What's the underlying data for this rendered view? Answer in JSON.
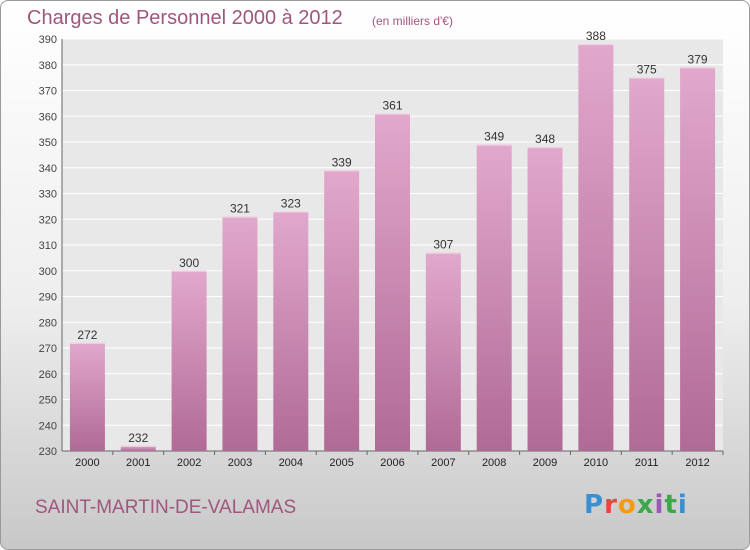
{
  "header": {
    "title": "Charges de Personnel 2000 à 2012",
    "subtitle": "(en milliers d'€)"
  },
  "footer": {
    "location": "SAINT-MARTIN-DE-VALAMAS",
    "brand_letters": [
      "P",
      "r",
      "o",
      "x",
      "i",
      "t",
      "i"
    ],
    "brand_colors": [
      "#3b8fd1",
      "#e8463c",
      "#f39c12",
      "#3aa84a",
      "#9b59b6",
      "#3aa84a",
      "#3b8fd1"
    ]
  },
  "colors": {
    "bar_top": "#e2a8cc",
    "bar_bottom": "#b06a96",
    "accent": "#a0567f",
    "plot_bg": "#e8e8e8"
  },
  "chart_data": {
    "type": "bar",
    "title": "Charges de Personnel 2000 à 2012",
    "subtitle": "(en milliers d'€)",
    "categories": [
      "2000",
      "2001",
      "2002",
      "2003",
      "2004",
      "2005",
      "2006",
      "2007",
      "2008",
      "2009",
      "2010",
      "2011",
      "2012"
    ],
    "values": [
      272,
      232,
      300,
      321,
      323,
      339,
      361,
      307,
      349,
      348,
      388,
      375,
      379
    ],
    "ylim": [
      230,
      390
    ],
    "ytick_step": 10,
    "grid": true,
    "data_labels": true
  }
}
